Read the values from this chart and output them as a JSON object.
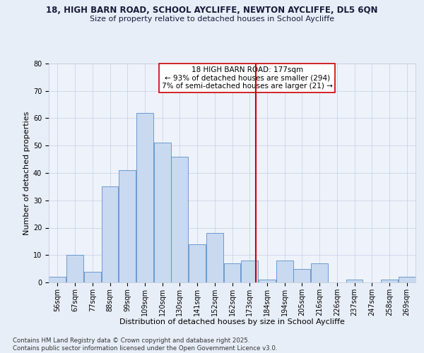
{
  "title_line1": "18, HIGH BARN ROAD, SCHOOL AYCLIFFE, NEWTON AYCLIFFE, DL5 6QN",
  "title_line2": "Size of property relative to detached houses in School Aycliffe",
  "xlabel": "Distribution of detached houses by size in School Aycliffe",
  "ylabel": "Number of detached properties",
  "bin_labels": [
    "56sqm",
    "67sqm",
    "77sqm",
    "88sqm",
    "99sqm",
    "109sqm",
    "120sqm",
    "130sqm",
    "141sqm",
    "152sqm",
    "162sqm",
    "173sqm",
    "184sqm",
    "194sqm",
    "205sqm",
    "216sqm",
    "226sqm",
    "237sqm",
    "247sqm",
    "258sqm",
    "269sqm"
  ],
  "bar_heights": [
    2,
    10,
    4,
    35,
    41,
    62,
    51,
    46,
    14,
    18,
    7,
    8,
    1,
    8,
    5,
    7,
    0,
    1,
    0,
    1,
    2
  ],
  "bar_color": "#c8d9f0",
  "bar_edgecolor": "#5b8fc9",
  "vline_x_index": 12,
  "vline_color": "#cc0000",
  "annotation_text": "18 HIGH BARN ROAD: 177sqm\n← 93% of detached houses are smaller (294)\n7% of semi-detached houses are larger (21) →",
  "annotation_box_edgecolor": "#cc0000",
  "ylim": [
    0,
    80
  ],
  "yticks": [
    0,
    10,
    20,
    30,
    40,
    50,
    60,
    70,
    80
  ],
  "footer_text": "Contains HM Land Registry data © Crown copyright and database right 2025.\nContains public sector information licensed under the Open Government Licence v3.0.",
  "bg_color": "#e8eef8",
  "plot_bg_color": "#eef2fb",
  "grid_color": "#c5cfe0",
  "title_fontsize": 8.5,
  "title2_fontsize": 8.0,
  "axis_label_fontsize": 8.0,
  "tick_fontsize": 7.0,
  "footer_fontsize": 6.2,
  "annotation_fontsize": 7.5
}
